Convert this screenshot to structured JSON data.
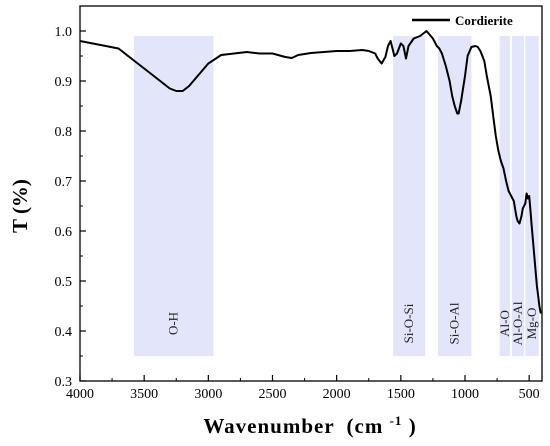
{
  "chart_data": {
    "type": "line",
    "title": "",
    "xlabel": "Wavenumber",
    "xlabel_unit_base": "(cm",
    "xlabel_unit_sup": "-1",
    "xlabel_unit_close": ")",
    "ylabel": "T (%)",
    "xlim": [
      4000,
      400
    ],
    "ylim": [
      0.3,
      1.05
    ],
    "x_reversed": true,
    "grid": false,
    "legend_position": "top-right",
    "x_ticks": [
      "4000",
      "3500",
      "3000",
      "2500",
      "2000",
      "1500",
      "1000",
      "500"
    ],
    "y_ticks": [
      "0.3",
      "0.4",
      "0.5",
      "0.6",
      "0.7",
      "0.8",
      "0.9",
      "1.0"
    ],
    "band_color": "#e3e6fa",
    "line_color": "#000000",
    "bands": [
      {
        "label": "O-H",
        "x_from": 3580,
        "x_to": 2960
      },
      {
        "label": "Si-O-Si",
        "x_from": 1560,
        "x_to": 1310
      },
      {
        "label": "Si-O-Al",
        "x_from": 1210,
        "x_to": 950
      },
      {
        "label": "Al-O",
        "x_from": 730,
        "x_to": 650
      },
      {
        "label": "Al-O-Al",
        "x_from": 635,
        "x_to": 540
      },
      {
        "label": "Mg-O",
        "x_from": 530,
        "x_to": 425
      }
    ],
    "series": [
      {
        "name": "Cordierite",
        "x": [
          4000,
          3900,
          3800,
          3700,
          3650,
          3600,
          3500,
          3400,
          3300,
          3250,
          3200,
          3150,
          3100,
          3000,
          2900,
          2800,
          2700,
          2600,
          2500,
          2400,
          2350,
          2300,
          2200,
          2100,
          2000,
          1900,
          1800,
          1750,
          1700,
          1680,
          1650,
          1620,
          1600,
          1580,
          1550,
          1530,
          1500,
          1480,
          1460,
          1440,
          1400,
          1350,
          1300,
          1250,
          1220,
          1200,
          1180,
          1150,
          1120,
          1100,
          1080,
          1060,
          1050,
          1030,
          1000,
          980,
          950,
          920,
          900,
          880,
          850,
          830,
          800,
          780,
          760,
          740,
          720,
          700,
          680,
          660,
          640,
          620,
          600,
          590,
          575,
          560,
          550,
          530,
          520,
          510,
          500,
          490,
          480,
          470,
          460,
          450,
          440,
          430,
          420,
          410
        ],
        "y": [
          0.98,
          0.975,
          0.97,
          0.965,
          0.955,
          0.945,
          0.925,
          0.905,
          0.885,
          0.88,
          0.88,
          0.89,
          0.905,
          0.935,
          0.952,
          0.955,
          0.958,
          0.955,
          0.955,
          0.948,
          0.946,
          0.952,
          0.956,
          0.958,
          0.96,
          0.96,
          0.962,
          0.96,
          0.955,
          0.945,
          0.935,
          0.948,
          0.97,
          0.98,
          0.95,
          0.955,
          0.975,
          0.97,
          0.945,
          0.97,
          0.985,
          0.99,
          1.0,
          0.985,
          0.97,
          0.965,
          0.955,
          0.93,
          0.9,
          0.87,
          0.85,
          0.835,
          0.835,
          0.86,
          0.91,
          0.95,
          0.968,
          0.97,
          0.968,
          0.96,
          0.94,
          0.91,
          0.87,
          0.83,
          0.79,
          0.76,
          0.74,
          0.725,
          0.7,
          0.68,
          0.67,
          0.66,
          0.63,
          0.62,
          0.615,
          0.63,
          0.645,
          0.655,
          0.675,
          0.665,
          0.67,
          0.64,
          0.61,
          0.58,
          0.55,
          0.52,
          0.49,
          0.47,
          0.45,
          0.435
        ]
      }
    ]
  }
}
